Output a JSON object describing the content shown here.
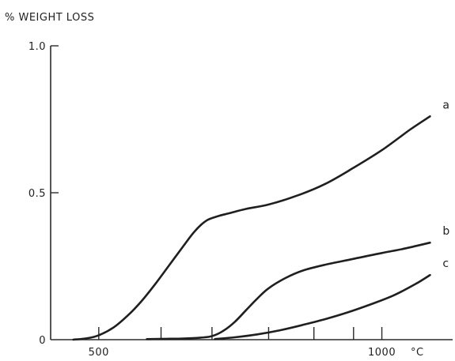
{
  "chart_data": {
    "type": "line",
    "title": "",
    "ylabel": "% WEIGHT LOSS",
    "xlabel": "",
    "x_unit_label": "°C",
    "xlim": [
      415,
      1125
    ],
    "ylim": [
      0,
      1.0
    ],
    "x_tick_labels": [
      {
        "value": 500,
        "label": "500"
      },
      {
        "value": 1000,
        "label": "1000"
      }
    ],
    "y_tick_labels": [
      {
        "value": 0,
        "label": "0"
      },
      {
        "value": 0.5,
        "label": "0.5"
      },
      {
        "value": 1.0,
        "label": "1.0"
      }
    ],
    "grid": false,
    "legend": "none",
    "series": [
      {
        "name": "a",
        "x": [
          455,
          480,
          500,
          525,
          550,
          575,
          600,
          625,
          650,
          670,
          690,
          710,
          730,
          760,
          800,
          850,
          900,
          950,
          1000,
          1050,
          1085
        ],
        "y": [
          0,
          0.005,
          0.015,
          0.04,
          0.08,
          0.13,
          0.19,
          0.255,
          0.32,
          0.37,
          0.405,
          0.42,
          0.43,
          0.445,
          0.46,
          0.49,
          0.53,
          0.585,
          0.645,
          0.715,
          0.76
        ]
      },
      {
        "name": "b",
        "x": [
          585,
          620,
          650,
          680,
          700,
          720,
          740,
          760,
          780,
          800,
          830,
          860,
          900,
          950,
          1000,
          1040,
          1085
        ],
        "y": [
          0.002,
          0.003,
          0.004,
          0.007,
          0.012,
          0.03,
          0.06,
          0.1,
          0.14,
          0.175,
          0.21,
          0.235,
          0.255,
          0.275,
          0.295,
          0.31,
          0.33
        ]
      },
      {
        "name": "c",
        "x": [
          705,
          740,
          780,
          820,
          860,
          900,
          940,
          980,
          1020,
          1060,
          1085
        ],
        "y": [
          0.002,
          0.008,
          0.018,
          0.032,
          0.05,
          0.07,
          0.093,
          0.12,
          0.15,
          0.19,
          0.22
        ]
      }
    ],
    "minor_x_ticks": [
      610,
      700,
      800,
      880,
      950
    ]
  }
}
